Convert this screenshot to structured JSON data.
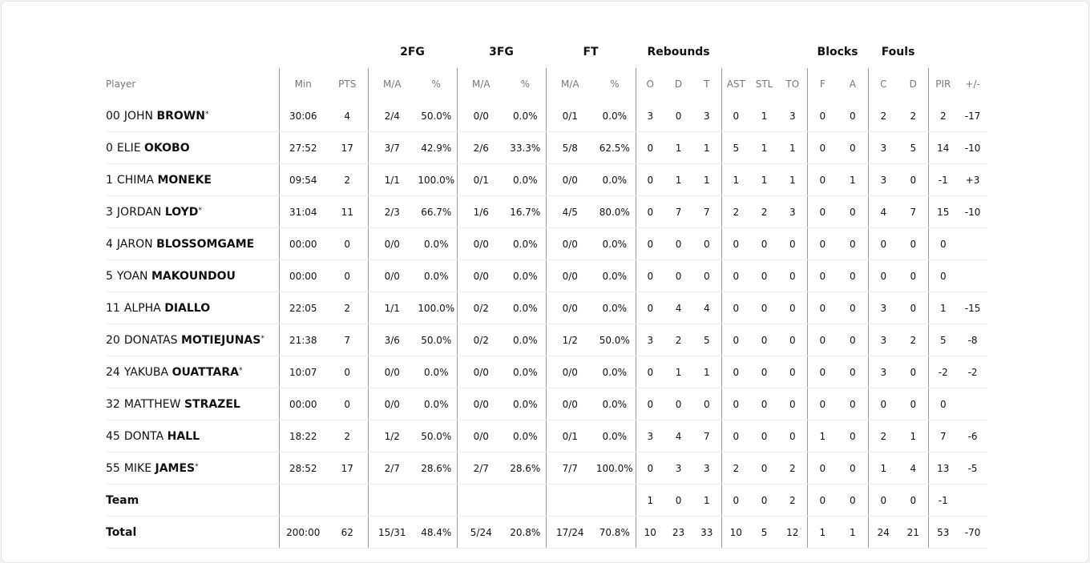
{
  "groups": {
    "fg2": "2FG",
    "fg3": "3FG",
    "ft": "FT",
    "reb": "Rebounds",
    "blk": "Blocks",
    "fouls": "Fouls"
  },
  "columns": [
    "Player",
    "Min",
    "PTS",
    "M/A",
    "%",
    "M/A",
    "%",
    "M/A",
    "%",
    "O",
    "D",
    "T",
    "AST",
    "STL",
    "TO",
    "F",
    "A",
    "C",
    "D",
    "PIR",
    "+/-"
  ],
  "players": [
    {
      "num": "00",
      "first": "JOHN",
      "last": "BROWN",
      "starter": true,
      "stats": [
        "30:06",
        "4",
        "2/4",
        "50.0%",
        "0/0",
        "0.0%",
        "0/1",
        "0.0%",
        "3",
        "0",
        "3",
        "0",
        "1",
        "3",
        "0",
        "0",
        "2",
        "2",
        "2",
        "-17"
      ]
    },
    {
      "num": "0",
      "first": "ELIE",
      "last": "OKOBO",
      "starter": false,
      "stats": [
        "27:52",
        "17",
        "3/7",
        "42.9%",
        "2/6",
        "33.3%",
        "5/8",
        "62.5%",
        "0",
        "1",
        "1",
        "5",
        "1",
        "1",
        "0",
        "0",
        "3",
        "5",
        "14",
        "-10"
      ]
    },
    {
      "num": "1",
      "first": "CHIMA",
      "last": "MONEKE",
      "starter": false,
      "stats": [
        "09:54",
        "2",
        "1/1",
        "100.0%",
        "0/1",
        "0.0%",
        "0/0",
        "0.0%",
        "0",
        "1",
        "1",
        "1",
        "1",
        "1",
        "0",
        "1",
        "3",
        "0",
        "-1",
        "+3"
      ]
    },
    {
      "num": "3",
      "first": "JORDAN",
      "last": "LOYD",
      "starter": true,
      "stats": [
        "31:04",
        "11",
        "2/3",
        "66.7%",
        "1/6",
        "16.7%",
        "4/5",
        "80.0%",
        "0",
        "7",
        "7",
        "2",
        "2",
        "3",
        "0",
        "0",
        "4",
        "7",
        "15",
        "-10"
      ]
    },
    {
      "num": "4",
      "first": "JARON",
      "last": "BLOSSOMGAME",
      "starter": false,
      "stats": [
        "00:00",
        "0",
        "0/0",
        "0.0%",
        "0/0",
        "0.0%",
        "0/0",
        "0.0%",
        "0",
        "0",
        "0",
        "0",
        "0",
        "0",
        "0",
        "0",
        "0",
        "0",
        "0",
        ""
      ]
    },
    {
      "num": "5",
      "first": "YOAN",
      "last": "MAKOUNDOU",
      "starter": false,
      "stats": [
        "00:00",
        "0",
        "0/0",
        "0.0%",
        "0/0",
        "0.0%",
        "0/0",
        "0.0%",
        "0",
        "0",
        "0",
        "0",
        "0",
        "0",
        "0",
        "0",
        "0",
        "0",
        "0",
        ""
      ]
    },
    {
      "num": "11",
      "first": "ALPHA",
      "last": "DIALLO",
      "starter": false,
      "stats": [
        "22:05",
        "2",
        "1/1",
        "100.0%",
        "0/2",
        "0.0%",
        "0/0",
        "0.0%",
        "0",
        "4",
        "4",
        "0",
        "0",
        "0",
        "0",
        "0",
        "3",
        "0",
        "1",
        "-15"
      ]
    },
    {
      "num": "20",
      "first": "DONATAS",
      "last": "MOTIEJUNAS",
      "starter": true,
      "stats": [
        "21:38",
        "7",
        "3/6",
        "50.0%",
        "0/2",
        "0.0%",
        "1/2",
        "50.0%",
        "3",
        "2",
        "5",
        "0",
        "0",
        "0",
        "0",
        "0",
        "3",
        "2",
        "5",
        "-8"
      ]
    },
    {
      "num": "24",
      "first": "YAKUBA",
      "last": "OUATTARA",
      "starter": true,
      "stats": [
        "10:07",
        "0",
        "0/0",
        "0.0%",
        "0/0",
        "0.0%",
        "0/0",
        "0.0%",
        "0",
        "1",
        "1",
        "0",
        "0",
        "0",
        "0",
        "0",
        "3",
        "0",
        "-2",
        "-2"
      ]
    },
    {
      "num": "32",
      "first": "MATTHEW",
      "last": "STRAZEL",
      "starter": false,
      "stats": [
        "00:00",
        "0",
        "0/0",
        "0.0%",
        "0/0",
        "0.0%",
        "0/0",
        "0.0%",
        "0",
        "0",
        "0",
        "0",
        "0",
        "0",
        "0",
        "0",
        "0",
        "0",
        "0",
        ""
      ]
    },
    {
      "num": "45",
      "first": "DONTA",
      "last": "HALL",
      "starter": false,
      "stats": [
        "18:22",
        "2",
        "1/2",
        "50.0%",
        "0/0",
        "0.0%",
        "0/1",
        "0.0%",
        "3",
        "4",
        "7",
        "0",
        "0",
        "0",
        "1",
        "0",
        "2",
        "1",
        "7",
        "-6"
      ]
    },
    {
      "num": "55",
      "first": "MIKE",
      "last": "JAMES",
      "starter": true,
      "stats": [
        "28:52",
        "17",
        "2/7",
        "28.6%",
        "2/7",
        "28.6%",
        "7/7",
        "100.0%",
        "0",
        "3",
        "3",
        "2",
        "0",
        "2",
        "0",
        "0",
        "1",
        "4",
        "13",
        "-5"
      ]
    }
  ],
  "team": {
    "label": "Team",
    "stats": [
      "",
      "",
      "",
      "",
      "",
      "",
      "",
      "",
      "1",
      "0",
      "1",
      "0",
      "0",
      "2",
      "0",
      "0",
      "0",
      "0",
      "-1",
      ""
    ]
  },
  "total": {
    "label": "Total",
    "stats": [
      "200:00",
      "62",
      "15/31",
      "48.4%",
      "5/24",
      "20.8%",
      "17/24",
      "70.8%",
      "10",
      "23",
      "33",
      "10",
      "5",
      "12",
      "1",
      "1",
      "24",
      "21",
      "53",
      "-70"
    ]
  },
  "starter_mark": "*"
}
